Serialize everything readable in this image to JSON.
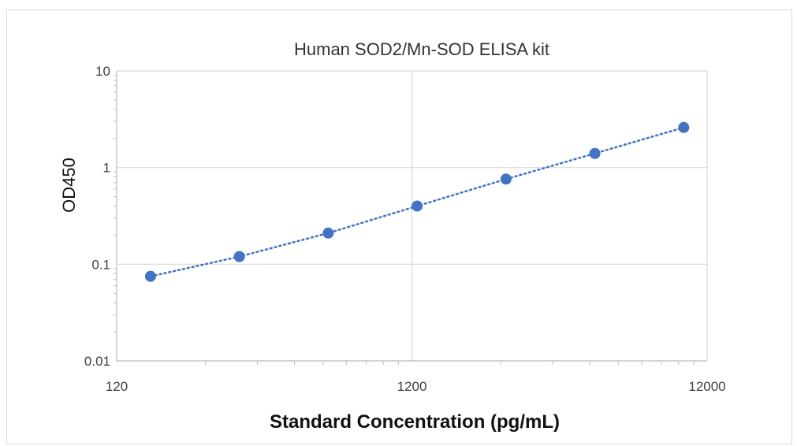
{
  "chart_data": {
    "type": "scatter",
    "title": "Human SOD2/Mn-SOD  ELISA kit",
    "xlabel": "Standard Concentration (pg/mL)",
    "ylabel": "OD450",
    "x_scale": "log",
    "y_scale": "log",
    "xlim": [
      120,
      12000
    ],
    "ylim": [
      0.01,
      10
    ],
    "x_ticks": [
      "120",
      "1200",
      "12000"
    ],
    "y_ticks": [
      "10",
      "1",
      "0.1",
      "0.01"
    ],
    "grid": true,
    "trendline": "dotted",
    "series": [
      {
        "color": "#4472c4",
        "x": [
          156.25,
          312.5,
          625,
          1250,
          2500,
          5000,
          10000
        ],
        "y": [
          0.075,
          0.12,
          0.21,
          0.4,
          0.76,
          1.4,
          2.6
        ]
      }
    ]
  }
}
